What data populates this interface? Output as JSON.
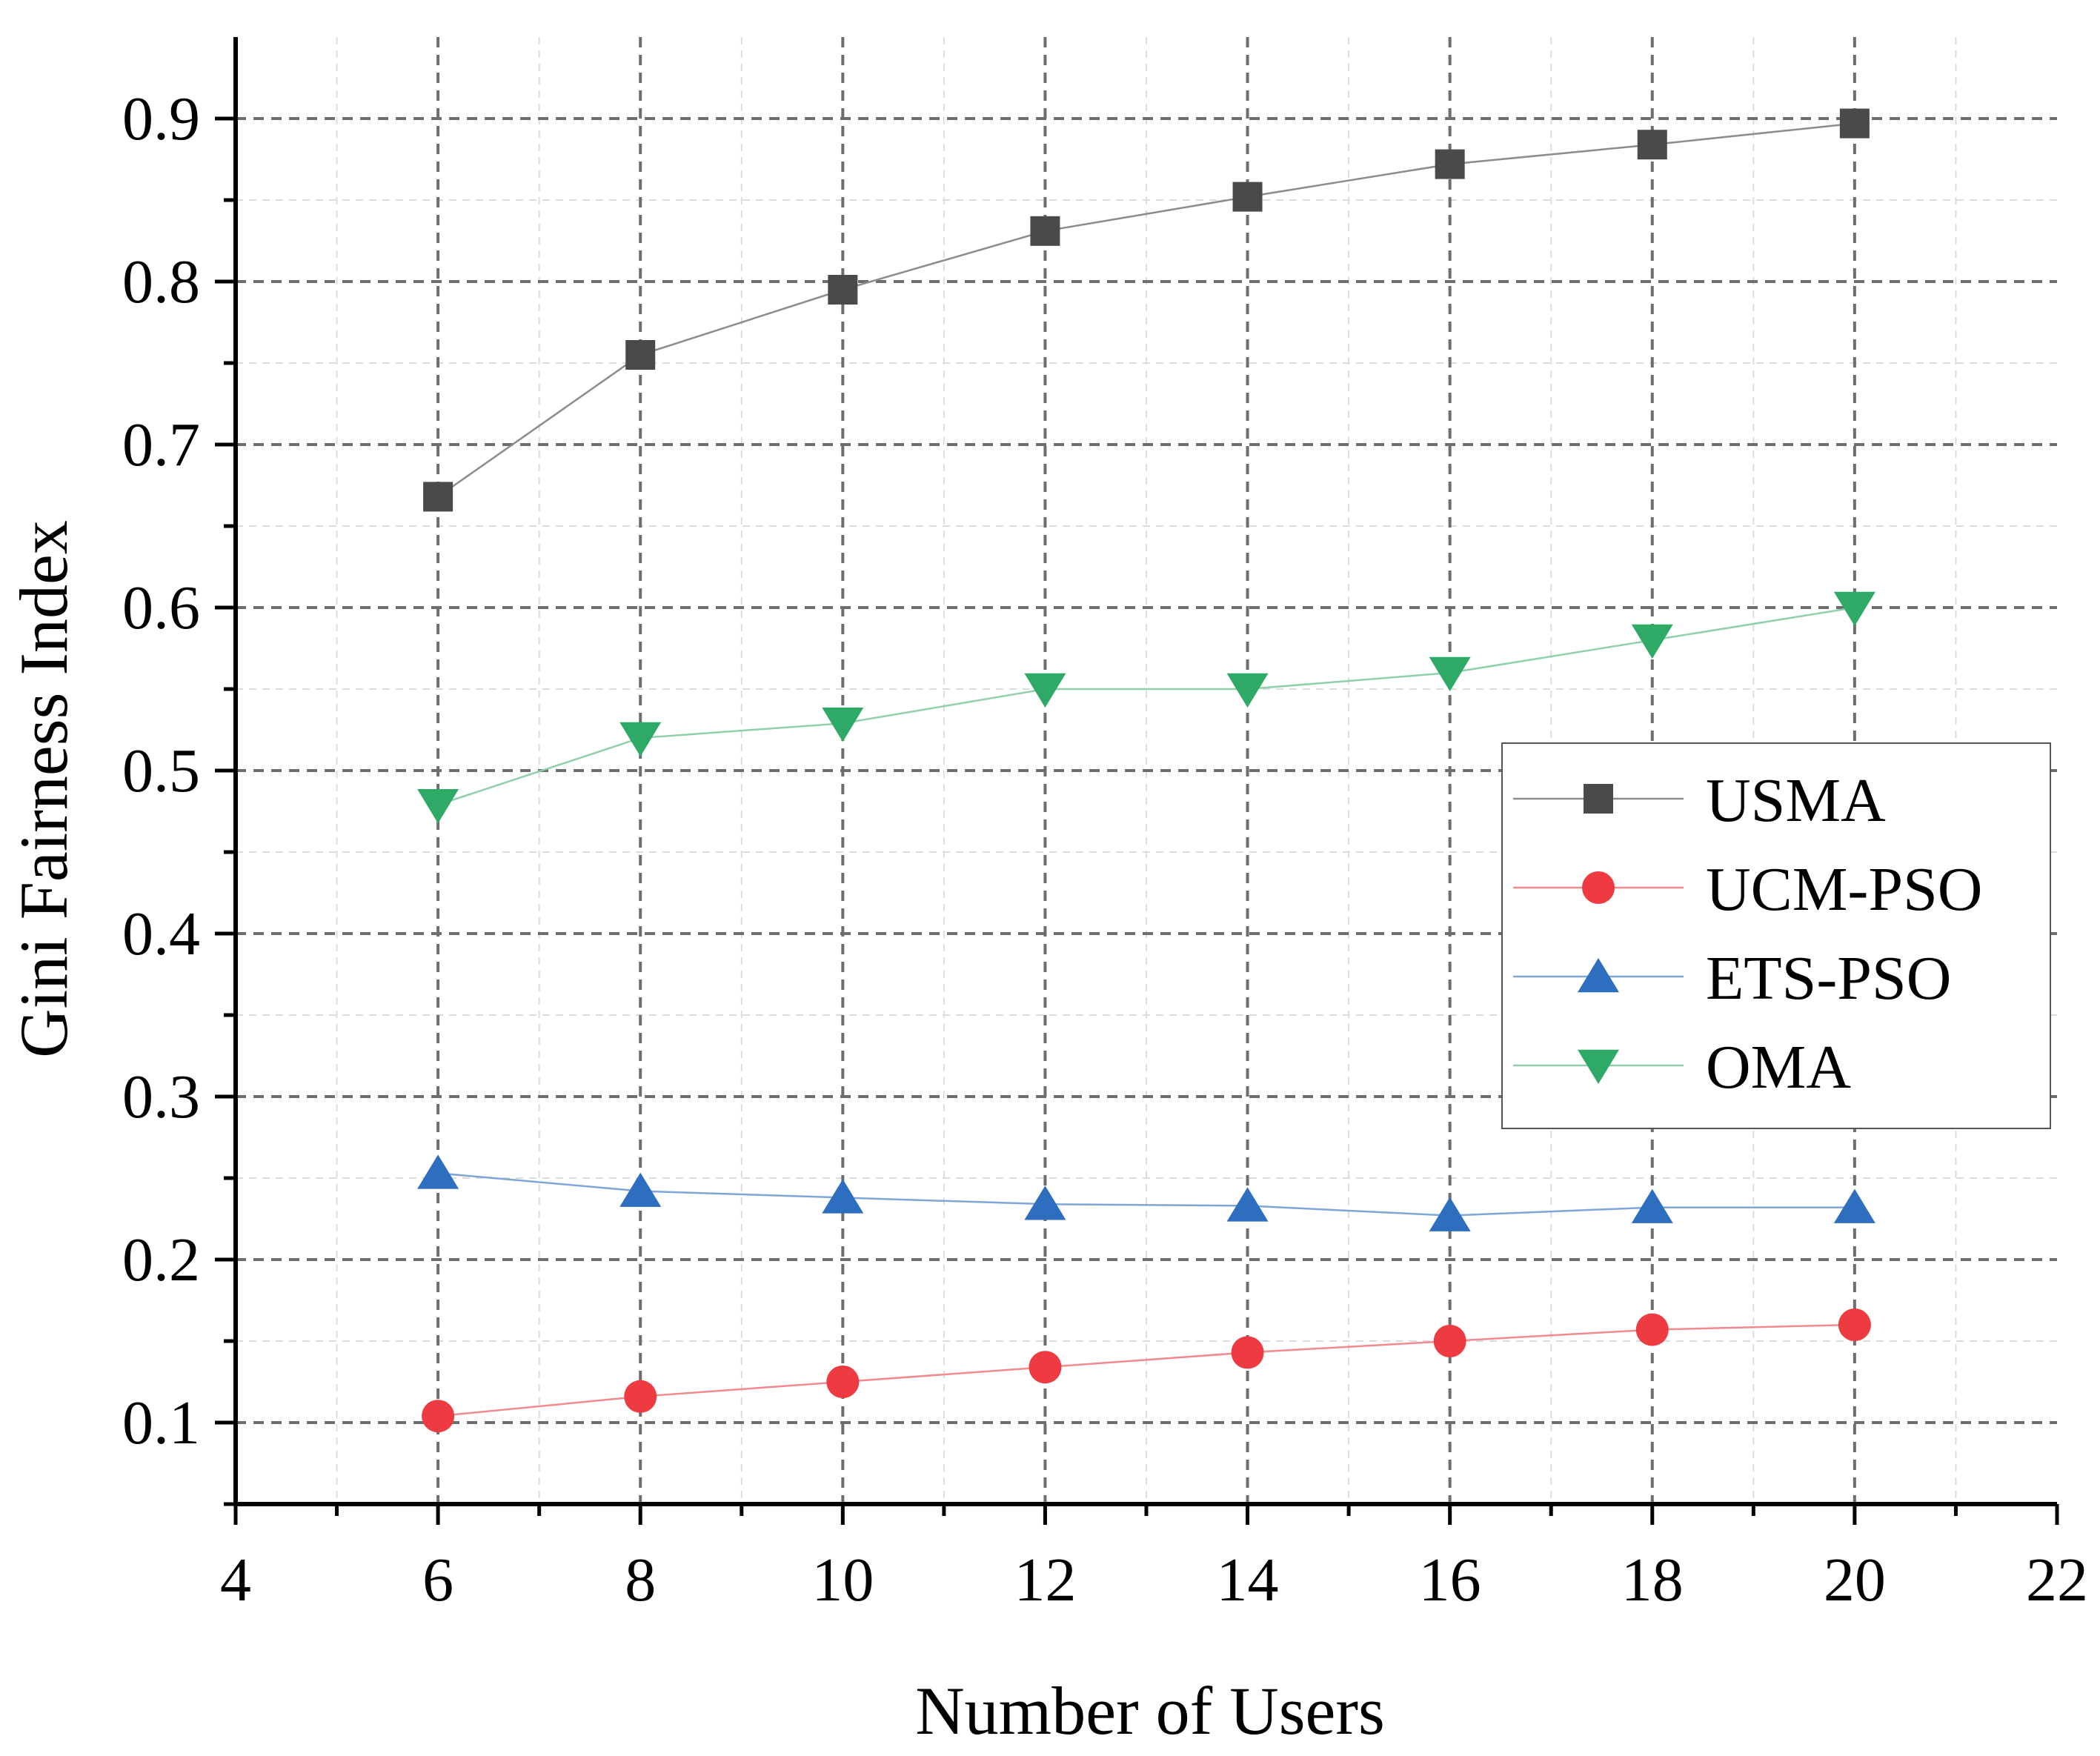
{
  "chart_data": {
    "type": "line",
    "title": "",
    "xlabel": "Number of Users",
    "ylabel": "Gini Fairness Index",
    "xlim": [
      4,
      22
    ],
    "ylim": [
      0.05,
      0.95
    ],
    "xticks": [
      4,
      6,
      8,
      10,
      12,
      14,
      16,
      18,
      20,
      22
    ],
    "xtick_labels": [
      "4",
      "6",
      "8",
      "10",
      "12",
      "14",
      "16",
      "18",
      "20",
      "22"
    ],
    "yticks": [
      0.1,
      0.2,
      0.3,
      0.4,
      0.5,
      0.6,
      0.7,
      0.8,
      0.9
    ],
    "ytick_labels": [
      "0.1",
      "0.2",
      "0.3",
      "0.4",
      "0.5",
      "0.6",
      "0.7",
      "0.8",
      "0.9"
    ],
    "grid": true,
    "legend_position": "center-right",
    "x": [
      6,
      8,
      10,
      12,
      14,
      16,
      18,
      20
    ],
    "series": [
      {
        "name": "USMA",
        "marker": "square",
        "color": "#4a4a4a",
        "line_color": "#8c8c8c",
        "values": [
          0.668,
          0.755,
          0.795,
          0.831,
          0.852,
          0.872,
          0.884,
          0.897
        ]
      },
      {
        "name": "UCM-PSO",
        "marker": "circle",
        "color": "#ee3b41",
        "line_color": "#f08a8e",
        "values": [
          0.104,
          0.116,
          0.125,
          0.134,
          0.143,
          0.15,
          0.157,
          0.16
        ]
      },
      {
        "name": "ETS-PSO",
        "marker": "triangle-up",
        "color": "#2e6ebf",
        "line_color": "#7fa6d8",
        "values": [
          0.253,
          0.242,
          0.238,
          0.234,
          0.233,
          0.227,
          0.232,
          0.232
        ]
      },
      {
        "name": "OMA",
        "marker": "triangle-down",
        "color": "#2eaa66",
        "line_color": "#8fd0ab",
        "values": [
          0.479,
          0.52,
          0.529,
          0.55,
          0.55,
          0.56,
          0.58,
          0.6
        ]
      }
    ]
  }
}
